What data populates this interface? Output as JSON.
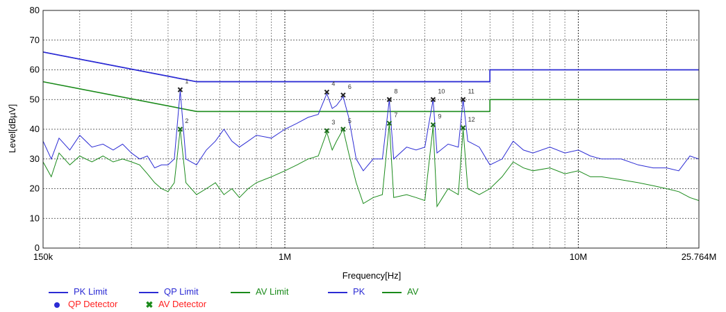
{
  "chart_data": {
    "type": "line",
    "title": "",
    "xlabel": "Frequency[Hz]",
    "ylabel": "Level[dBµV]",
    "x_scale": "log",
    "xlim": [
      150000,
      25764000
    ],
    "ylim": [
      0,
      80
    ],
    "x_tick_labels": [
      {
        "value": 150000,
        "label": "150k"
      },
      {
        "value": 1000000,
        "label": "1M"
      },
      {
        "value": 10000000,
        "label": "10M"
      },
      {
        "value": 25764000,
        "label": "25.764M"
      }
    ],
    "y_ticks": [
      0,
      10,
      20,
      30,
      40,
      50,
      60,
      70,
      80
    ],
    "grid": true,
    "legend_position": "bottom-left",
    "colors": {
      "blue": "#2b2bd4",
      "green": "#1a8a1a",
      "marker_label": "#ff2020"
    },
    "limits": [
      {
        "name": "PK Limit",
        "color": "#2b2bd4",
        "points": [
          [
            150000,
            66
          ],
          [
            500000,
            56
          ],
          [
            5000000,
            56
          ],
          [
            5000000,
            60
          ],
          [
            25764000,
            60
          ]
        ]
      },
      {
        "name": "QP Limit",
        "color": "#2b2bd4",
        "points": [
          [
            150000,
            66
          ],
          [
            500000,
            56
          ],
          [
            5000000,
            56
          ],
          [
            5000000,
            60
          ],
          [
            25764000,
            60
          ]
        ]
      },
      {
        "name": "AV Limit",
        "color": "#1a8a1a",
        "points": [
          [
            150000,
            56
          ],
          [
            500000,
            46
          ],
          [
            5000000,
            46
          ],
          [
            5000000,
            50
          ],
          [
            25764000,
            50
          ]
        ]
      }
    ],
    "series": [
      {
        "name": "PK",
        "color": "#2b2bd4",
        "points": [
          [
            150000,
            36
          ],
          [
            160000,
            30
          ],
          [
            170000,
            37
          ],
          [
            185000,
            33
          ],
          [
            200000,
            38
          ],
          [
            220000,
            34
          ],
          [
            240000,
            35
          ],
          [
            260000,
            33
          ],
          [
            280000,
            35
          ],
          [
            300000,
            32
          ],
          [
            320000,
            30
          ],
          [
            340000,
            31
          ],
          [
            360000,
            27
          ],
          [
            380000,
            28
          ],
          [
            400000,
            28
          ],
          [
            420000,
            30
          ],
          [
            440000,
            53
          ],
          [
            460000,
            30
          ],
          [
            500000,
            28
          ],
          [
            540000,
            33
          ],
          [
            580000,
            36
          ],
          [
            620000,
            40
          ],
          [
            660000,
            36
          ],
          [
            700000,
            34
          ],
          [
            750000,
            36
          ],
          [
            800000,
            38
          ],
          [
            900000,
            37
          ],
          [
            1000000,
            40
          ],
          [
            1100000,
            42
          ],
          [
            1200000,
            44
          ],
          [
            1300000,
            45
          ],
          [
            1390000,
            52
          ],
          [
            1450000,
            47
          ],
          [
            1500000,
            48
          ],
          [
            1580000,
            51
          ],
          [
            1650000,
            44
          ],
          [
            1750000,
            30
          ],
          [
            1850000,
            26
          ],
          [
            2000000,
            30
          ],
          [
            2150000,
            30
          ],
          [
            2270000,
            50
          ],
          [
            2350000,
            30
          ],
          [
            2600000,
            34
          ],
          [
            2800000,
            33
          ],
          [
            3000000,
            34
          ],
          [
            3200000,
            50
          ],
          [
            3300000,
            32
          ],
          [
            3600000,
            35
          ],
          [
            3900000,
            34
          ],
          [
            4050000,
            50
          ],
          [
            4200000,
            36
          ],
          [
            4600000,
            34
          ],
          [
            5000000,
            28
          ],
          [
            5500000,
            30
          ],
          [
            6000000,
            36
          ],
          [
            6500000,
            33
          ],
          [
            7000000,
            32
          ],
          [
            8000000,
            34
          ],
          [
            9000000,
            32
          ],
          [
            10000000,
            33
          ],
          [
            11000000,
            31
          ],
          [
            12000000,
            30
          ],
          [
            14000000,
            30
          ],
          [
            16000000,
            28
          ],
          [
            18000000,
            27
          ],
          [
            20000000,
            27
          ],
          [
            22000000,
            26
          ],
          [
            24000000,
            31
          ],
          [
            25764000,
            30
          ]
        ]
      },
      {
        "name": "AV",
        "color": "#1a8a1a",
        "points": [
          [
            150000,
            29
          ],
          [
            160000,
            24
          ],
          [
            170000,
            32
          ],
          [
            185000,
            28
          ],
          [
            200000,
            31
          ],
          [
            220000,
            29
          ],
          [
            240000,
            31
          ],
          [
            260000,
            29
          ],
          [
            280000,
            30
          ],
          [
            300000,
            29
          ],
          [
            320000,
            28
          ],
          [
            340000,
            25
          ],
          [
            360000,
            22
          ],
          [
            380000,
            20
          ],
          [
            400000,
            19
          ],
          [
            420000,
            22
          ],
          [
            440000,
            40
          ],
          [
            460000,
            22
          ],
          [
            500000,
            18
          ],
          [
            540000,
            20
          ],
          [
            580000,
            22
          ],
          [
            620000,
            18
          ],
          [
            660000,
            20
          ],
          [
            700000,
            17
          ],
          [
            750000,
            20
          ],
          [
            800000,
            22
          ],
          [
            900000,
            24
          ],
          [
            1000000,
            26
          ],
          [
            1100000,
            28
          ],
          [
            1200000,
            30
          ],
          [
            1300000,
            31
          ],
          [
            1390000,
            39
          ],
          [
            1450000,
            33
          ],
          [
            1500000,
            36
          ],
          [
            1580000,
            40
          ],
          [
            1650000,
            32
          ],
          [
            1750000,
            22
          ],
          [
            1850000,
            15
          ],
          [
            2000000,
            17
          ],
          [
            2150000,
            18
          ],
          [
            2270000,
            42
          ],
          [
            2350000,
            17
          ],
          [
            2600000,
            18
          ],
          [
            2800000,
            17
          ],
          [
            3000000,
            16
          ],
          [
            3200000,
            41
          ],
          [
            3300000,
            14
          ],
          [
            3600000,
            20
          ],
          [
            3900000,
            18
          ],
          [
            4050000,
            40
          ],
          [
            4200000,
            20
          ],
          [
            4600000,
            18
          ],
          [
            5000000,
            20
          ],
          [
            5500000,
            24
          ],
          [
            6000000,
            29
          ],
          [
            6500000,
            27
          ],
          [
            7000000,
            26
          ],
          [
            8000000,
            27
          ],
          [
            9000000,
            25
          ],
          [
            10000000,
            26
          ],
          [
            11000000,
            24
          ],
          [
            12000000,
            24
          ],
          [
            14000000,
            23
          ],
          [
            16000000,
            22
          ],
          [
            18000000,
            21
          ],
          [
            20000000,
            20
          ],
          [
            22000000,
            19
          ],
          [
            24000000,
            17
          ],
          [
            25764000,
            16
          ]
        ]
      }
    ],
    "markers": [
      {
        "label": "1",
        "detector": "QP",
        "freq": 440000,
        "level": 53.3
      },
      {
        "label": "2",
        "detector": "AV",
        "freq": 440000,
        "level": 40.0
      },
      {
        "label": "3",
        "detector": "AV",
        "freq": 1390000,
        "level": 39.5
      },
      {
        "label": "4",
        "detector": "QP",
        "freq": 1390000,
        "level": 52.5
      },
      {
        "label": "5",
        "detector": "AV",
        "freq": 1580000,
        "level": 40.0
      },
      {
        "label": "6",
        "detector": "QP",
        "freq": 1580000,
        "level": 51.5
      },
      {
        "label": "7",
        "detector": "AV",
        "freq": 2270000,
        "level": 42.0
      },
      {
        "label": "8",
        "detector": "QP",
        "freq": 2270000,
        "level": 50.0
      },
      {
        "label": "9",
        "detector": "AV",
        "freq": 3200000,
        "level": 41.5
      },
      {
        "label": "10",
        "detector": "QP",
        "freq": 3200000,
        "level": 50.0
      },
      {
        "label": "11",
        "detector": "QP",
        "freq": 4050000,
        "level": 50.0
      },
      {
        "label": "12",
        "detector": "AV",
        "freq": 4050000,
        "level": 40.5
      }
    ]
  },
  "legend": {
    "items": [
      {
        "label": "PK Limit",
        "kind": "line",
        "color": "#2b2bd4"
      },
      {
        "label": "QP Limit",
        "kind": "line",
        "color": "#2b2bd4"
      },
      {
        "label": "AV Limit",
        "kind": "line",
        "color": "#1a8a1a"
      },
      {
        "label": "PK",
        "kind": "line",
        "color": "#2b2bd4"
      },
      {
        "label": "AV",
        "kind": "line",
        "color": "#1a8a1a"
      },
      {
        "label": "QP Detector",
        "kind": "dot",
        "color": "#2b2bd4",
        "text_color": "#ff2020"
      },
      {
        "label": "AV Detector",
        "kind": "x",
        "color": "#1a8a1a",
        "text_color": "#ff2020"
      }
    ]
  }
}
